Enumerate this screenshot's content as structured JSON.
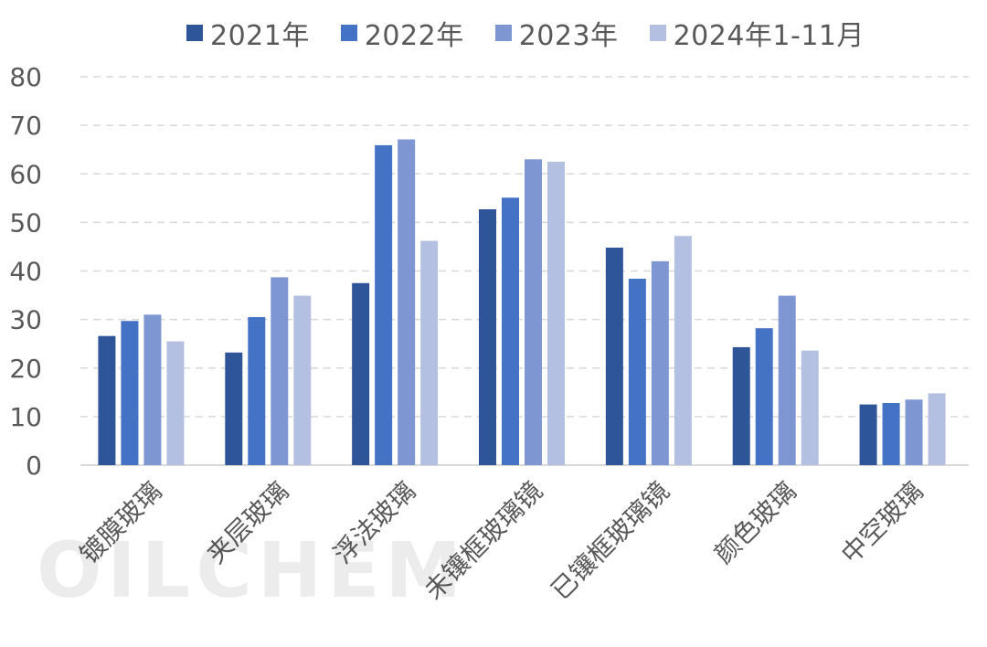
{
  "chart_data": {
    "type": "bar",
    "categories": [
      "镀膜玻璃",
      "夹层玻璃",
      "浮法玻璃",
      "未镶框玻璃镜",
      "已镶框玻璃镜",
      "颜色玻璃",
      "中空玻璃"
    ],
    "series": [
      {
        "name": "2021年",
        "color": "#2E5597",
        "values": [
          26.6,
          23.2,
          37.5,
          52.7,
          44.8,
          24.3,
          12.5
        ]
      },
      {
        "name": "2022年",
        "color": "#4472C4",
        "values": [
          29.7,
          30.5,
          65.9,
          55.1,
          38.4,
          28.2,
          12.8
        ]
      },
      {
        "name": "2023年",
        "color": "#7E96D2",
        "values": [
          31.0,
          38.7,
          67.1,
          63.0,
          42.0,
          34.9,
          13.5
        ]
      },
      {
        "name": "2024年1-11月",
        "color": "#B4C0E2",
        "values": [
          25.5,
          34.9,
          46.2,
          62.5,
          47.2,
          23.6,
          14.8
        ]
      }
    ],
    "ylim": [
      0,
      80
    ],
    "yticks": [
      0,
      10,
      20,
      30,
      40,
      50,
      60,
      70,
      80
    ],
    "grid": true,
    "legend": "top-center",
    "title": "",
    "xlabel": "",
    "ylabel": ""
  },
  "watermark": "OILCHEM"
}
